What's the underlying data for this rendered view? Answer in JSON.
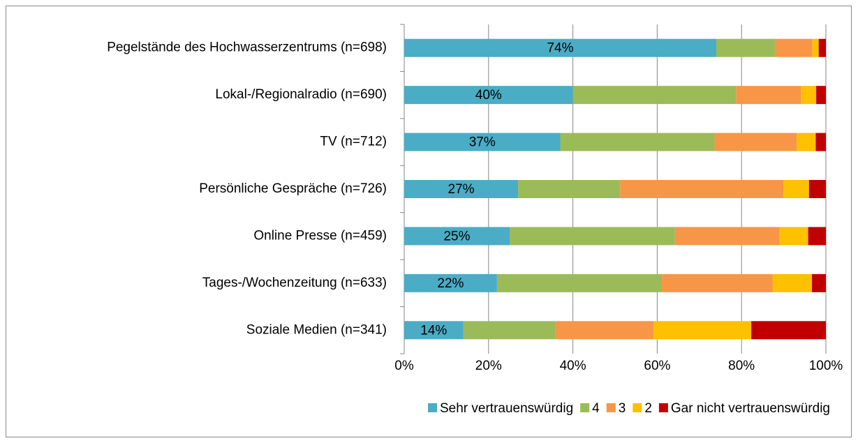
{
  "chart_data": {
    "type": "stacked-bar-horizontal",
    "categories": [
      "Pegelstände des Hochwasserzentrums (n=698)",
      "Lokal-/Regionalradio (n=690)",
      "TV (n=712)",
      "Persönliche Gespräche (n=726)",
      "Online Presse (n=459)",
      "Tages-/Wochenzeitung (n=633)",
      "Soziale Medien (n=341)"
    ],
    "series": [
      {
        "name": "Sehr vertrauenswürdig",
        "color": "#4bacc6",
        "values": [
          74,
          40,
          37,
          27,
          25,
          22,
          14
        ],
        "value_labels": [
          "74%",
          "40%",
          "37%",
          "27%",
          "25%",
          "22%",
          "14%"
        ]
      },
      {
        "name": "4",
        "color": "#9bbb59",
        "values": [
          13.9,
          38.7,
          36.6,
          24.2,
          39.2,
          39.1,
          21.9
        ]
      },
      {
        "name": "3",
        "color": "#f79646",
        "values": [
          8.9,
          15.4,
          19.5,
          38.7,
          24.8,
          26.3,
          23.2
        ]
      },
      {
        "name": "2",
        "color": "#ffc000",
        "values": [
          1.5,
          3.6,
          4.5,
          6.1,
          6.8,
          9.3,
          23.2
        ]
      },
      {
        "name": "Gar nicht vertrauenswürdig",
        "color": "#c00000",
        "values": [
          1.7,
          2.3,
          2.4,
          4,
          4.2,
          3.3,
          17.7
        ]
      }
    ],
    "xlim": [
      0,
      100
    ],
    "xticks": [
      {
        "value": 0,
        "label": "0%"
      },
      {
        "value": 20,
        "label": "20%"
      },
      {
        "value": 40,
        "label": "40%"
      },
      {
        "value": 60,
        "label": "60%"
      },
      {
        "value": 80,
        "label": "80%"
      },
      {
        "value": 100,
        "label": "100%"
      }
    ],
    "grid": true,
    "legend": "bottom"
  }
}
